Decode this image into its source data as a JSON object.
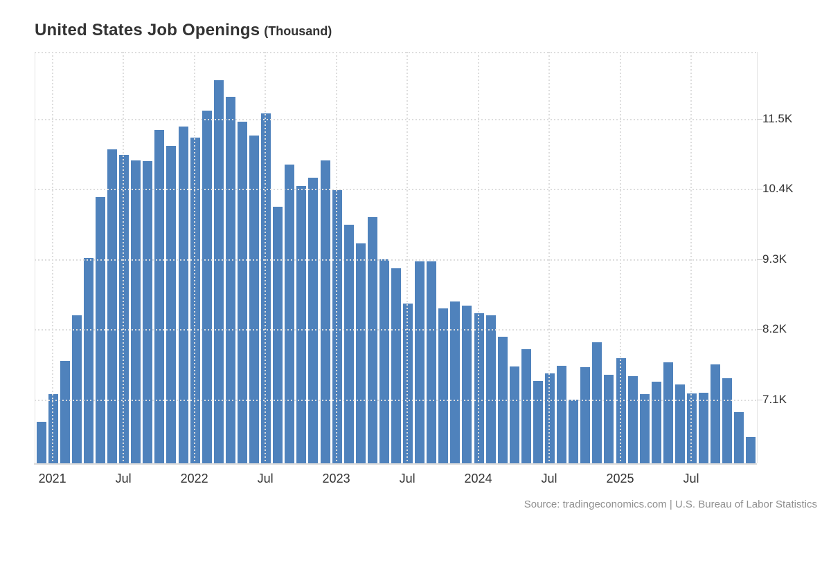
{
  "title": {
    "main": "United States Job Openings",
    "unit": "(Thousand)"
  },
  "source": {
    "text": "Source: tradingeconomics.com | U.S. Bureau of Labor Statistics"
  },
  "colors": {
    "bar": "#4f82bc",
    "grid": "#dddddd",
    "axis_text": "#333333",
    "source_text": "#8f8f8f"
  },
  "chart_data": {
    "type": "bar",
    "title": "United States Job Openings (Thousand)",
    "xlabel": "",
    "ylabel": "Job Openings (Thousand)",
    "legend_position": "none",
    "grid": "dotted",
    "ylim": [
      6.1,
      12.55
    ],
    "yticks": [
      {
        "value": 7.1,
        "label": "7.1K"
      },
      {
        "value": 8.2,
        "label": "8.2K"
      },
      {
        "value": 9.3,
        "label": "9.3K"
      },
      {
        "value": 10.4,
        "label": "10.4K"
      },
      {
        "value": 11.5,
        "label": "11.5K"
      }
    ],
    "xticks": [
      {
        "index": 1,
        "label": "2021"
      },
      {
        "index": 7,
        "label": "Jul"
      },
      {
        "index": 13,
        "label": "2022"
      },
      {
        "index": 19,
        "label": "Jul"
      },
      {
        "index": 25,
        "label": "2023"
      },
      {
        "index": 31,
        "label": "Jul"
      },
      {
        "index": 37,
        "label": "2024"
      },
      {
        "index": 43,
        "label": "Jul"
      },
      {
        "index": 49,
        "label": "2025"
      },
      {
        "index": 55,
        "label": "Jul"
      }
    ],
    "unit": "K",
    "categories": [
      "Dec 2020",
      "Jan 2021",
      "Feb 2021",
      "Mar 2021",
      "Apr 2021",
      "May 2021",
      "Jun 2021",
      "Jul 2021",
      "Aug 2021",
      "Sep 2021",
      "Oct 2021",
      "Nov 2021",
      "Dec 2021",
      "Jan 2022",
      "Feb 2022",
      "Mar 2022",
      "Apr 2022",
      "May 2022",
      "Jun 2022",
      "Jul 2022",
      "Aug 2022",
      "Sep 2022",
      "Oct 2022",
      "Nov 2022",
      "Dec 2022",
      "Jan 2023",
      "Feb 2023",
      "Mar 2023",
      "Apr 2023",
      "May 2023",
      "Jun 2023",
      "Jul 2023",
      "Aug 2023",
      "Sep 2023",
      "Oct 2023",
      "Nov 2023",
      "Dec 2023",
      "Jan 2024",
      "Feb 2024",
      "Mar 2024",
      "Apr 2024",
      "May 2024",
      "Jun 2024",
      "Jul 2024",
      "Aug 2024",
      "Sep 2024",
      "Oct 2024",
      "Nov 2024",
      "Dec 2024",
      "Jan 2025",
      "Feb 2025",
      "Mar 2025",
      "Apr 2025",
      "May 2025",
      "Jun 2025",
      "Jul 2025",
      "Aug 2025",
      "Sep 2025",
      "Oct 2025",
      "Nov 2025",
      "Dec 2025"
    ],
    "values": [
      6.75,
      7.18,
      7.7,
      8.42,
      9.32,
      10.27,
      11.02,
      10.93,
      10.85,
      10.84,
      11.33,
      11.08,
      11.38,
      11.21,
      11.63,
      12.11,
      11.85,
      11.46,
      11.24,
      11.58,
      10.12,
      10.78,
      10.45,
      10.58,
      10.85,
      10.38,
      9.84,
      9.55,
      9.96,
      9.3,
      9.16,
      8.6,
      9.27,
      9.27,
      8.53,
      8.64,
      8.57,
      8.45,
      8.42,
      8.08,
      7.62,
      7.89,
      7.39,
      7.51,
      7.63,
      7.1,
      7.61,
      8.0,
      7.49,
      7.75,
      7.47,
      7.18,
      7.38,
      7.68,
      7.34,
      7.19,
      7.21,
      7.65,
      7.43,
      6.9,
      6.51
    ]
  }
}
